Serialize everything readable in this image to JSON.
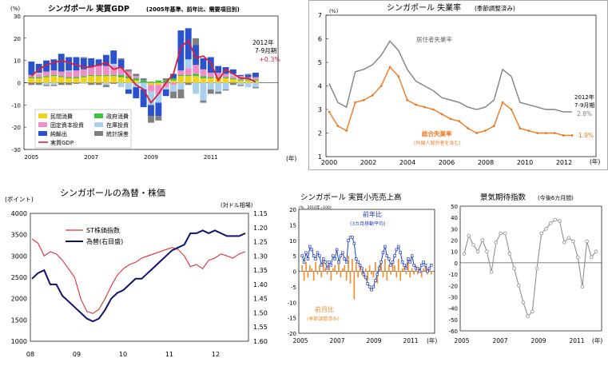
{
  "chart_data": [
    {
      "type": "bar",
      "title": "シンガポール 実質GDP",
      "subtitle": "(2005年基準、前年比、需要項目別)",
      "ylabel": "(%)",
      "xlabel": "(年)",
      "ylim": [
        -30,
        30
      ],
      "yticks": [
        "30",
        "20",
        "10",
        "0",
        "-10",
        "-20",
        "-30"
      ],
      "xticks": [
        "2005",
        "2007",
        "2009",
        "2011"
      ],
      "annotation": [
        "2012年",
        "7-9月期",
        "+0.3%"
      ],
      "legend": [
        "民間消費",
        "政府消費",
        "固定資本投資",
        "在庫投資",
        "純輸出",
        "統計誤差",
        "実質GDP"
      ],
      "colors": {
        "private_consumption": "#f2d21c",
        "government": "#3cc23c",
        "fixed_investment": "#f08cc8",
        "inventory": "#a8d0f0",
        "net_exports": "#2a52cc",
        "discrepancy": "#808080",
        "gdp": "#d8203c"
      },
      "quarters": [
        "2005Q1",
        "2005Q2",
        "2005Q3",
        "2005Q4",
        "2006Q1",
        "2006Q2",
        "2006Q3",
        "2006Q4",
        "2007Q1",
        "2007Q2",
        "2007Q3",
        "2007Q4",
        "2008Q1",
        "2008Q2",
        "2008Q3",
        "2008Q4",
        "2009Q1",
        "2009Q2",
        "2009Q3",
        "2009Q4",
        "2010Q1",
        "2010Q2",
        "2010Q3",
        "2010Q4",
        "2011Q1",
        "2011Q2",
        "2011Q3",
        "2011Q4",
        "2012Q1",
        "2012Q2",
        "2012Q3"
      ],
      "series": [
        {
          "key": "private_consumption",
          "name": "民間消費",
          "values": [
            2,
            2,
            2.5,
            3,
            2.5,
            2,
            2,
            2.5,
            3,
            3,
            3,
            3,
            2.5,
            2,
            1,
            0,
            -1,
            -1,
            0,
            1,
            3,
            3,
            3,
            2,
            2,
            2,
            2,
            1.5,
            1,
            1,
            1
          ]
        },
        {
          "key": "government",
          "name": "政府消費",
          "values": [
            0.5,
            0.5,
            0.5,
            0.5,
            0.5,
            0.5,
            0.5,
            0.5,
            0.5,
            0.5,
            0.5,
            0.5,
            1,
            1,
            1,
            1,
            0.5,
            1,
            1,
            1,
            0.5,
            0.5,
            1,
            1,
            0.5,
            0.5,
            0.5,
            0.5,
            0.5,
            0.5,
            0.5
          ]
        },
        {
          "key": "fixed_investment",
          "name": "固定資本投資",
          "values": [
            1,
            1.5,
            2,
            2,
            2,
            2.5,
            3,
            3,
            3.5,
            4,
            4,
            4,
            3,
            2,
            1,
            0,
            -3,
            -4,
            -2,
            -1,
            2,
            3,
            4,
            3,
            2,
            2,
            1.5,
            1,
            1.5,
            1,
            1
          ]
        },
        {
          "key": "inventory",
          "name": "在庫投資",
          "values": [
            0,
            0.5,
            -1,
            -1,
            0,
            0.5,
            0,
            -0.5,
            0,
            0,
            -1,
            1,
            -2,
            -3,
            -2,
            -3,
            -6,
            -4,
            -1,
            -3,
            -3,
            4,
            -5,
            -8,
            -3,
            -4,
            -3,
            1,
            -1,
            -2,
            -2
          ]
        },
        {
          "key": "net_exports",
          "name": "純輸出",
          "values": [
            6,
            4,
            5,
            5,
            8,
            6,
            6,
            5,
            4,
            3,
            5,
            6,
            4,
            -2,
            -5,
            -8,
            -5,
            -6,
            -3,
            2,
            18,
            14,
            9,
            5,
            7,
            3,
            3,
            2,
            0.5,
            1,
            2
          ]
        },
        {
          "key": "discrepancy",
          "name": "統計誤差",
          "values": [
            -1,
            -1,
            -0.5,
            -0.5,
            -1,
            -1,
            -0.5,
            0.5,
            -1,
            -1,
            -1,
            -0.5,
            0.5,
            1,
            1,
            1,
            -3,
            -2,
            1,
            -3,
            -4,
            -1,
            3,
            -1,
            -2,
            -1,
            -0.5,
            -1,
            -0.5,
            0.5,
            -0.5
          ]
        },
        {
          "key": "gdp",
          "name": "実質GDP",
          "values": [
            3,
            6,
            8,
            9,
            10,
            9,
            8,
            7,
            7,
            8,
            9,
            6,
            7,
            3,
            -1,
            -3,
            -9,
            -5,
            0,
            4,
            16,
            19,
            11,
            12,
            9,
            1,
            6,
            4,
            2,
            2,
            0.3
          ]
        }
      ]
    },
    {
      "type": "line",
      "title": "シンガポール 失業率",
      "subtitle": "(季節調整済み)",
      "ylabel": "(%)",
      "xlabel": "(年)",
      "ylim": [
        1,
        7
      ],
      "yticks": [
        "7",
        "6",
        "5",
        "4",
        "3",
        "2",
        "1"
      ],
      "xticks": [
        "2000",
        "2002",
        "2004",
        "2006",
        "2008",
        "2010",
        "2012"
      ],
      "annotation": [
        "2012年",
        "7-9月期",
        "2.8%",
        "1.9%"
      ],
      "colors": {
        "resident": "#808080",
        "overall": "#f07820"
      },
      "series": [
        {
          "key": "resident",
          "name": "居住者失業率",
          "values": [
            4.1,
            3.3,
            3.1,
            4.6,
            4.7,
            4.9,
            5.3,
            5.9,
            5.5,
            4.7,
            4.2,
            4.0,
            3.8,
            3.5,
            3.4,
            3.3,
            3.1,
            3.0,
            3.1,
            3.4,
            4.7,
            4.4,
            3.3,
            3.2,
            3.1,
            3.0,
            3.0,
            2.9,
            2.9
          ]
        },
        {
          "key": "overall",
          "name": "総合失業率",
          "note": "(外国人就労者を含む)",
          "values": [
            2.9,
            2.3,
            2.1,
            3.3,
            3.4,
            3.6,
            4.0,
            4.8,
            4.4,
            3.4,
            3.2,
            3.1,
            3.0,
            2.8,
            2.6,
            2.5,
            2.2,
            2.0,
            2.1,
            2.3,
            3.3,
            3.0,
            2.2,
            2.1,
            2.0,
            2.0,
            2.0,
            1.9,
            1.9
          ]
        }
      ]
    },
    {
      "type": "line",
      "title": "シンガポールの為替・株価",
      "ylabel": "(ポイント)",
      "ylabel2": "(対ドル相場)",
      "xticks": [
        "08",
        "09",
        "10",
        "11",
        "12"
      ],
      "ylim": [
        1000,
        4000
      ],
      "y2lim": [
        1.6,
        1.15
      ],
      "yticks": [
        "4000",
        "3500",
        "3000",
        "2500",
        "2000",
        "1500",
        "1000"
      ],
      "y2ticks": [
        "1.15",
        "1.20",
        "1.25",
        "1.30",
        "1.35",
        "1.40",
        "1.45",
        "1.50",
        "1.55",
        "1.60"
      ],
      "colors": {
        "sti": "#e03030",
        "fx": "#101070"
      },
      "series": [
        {
          "key": "sti",
          "name": "ST株価指数",
          "values": [
            3400,
            3300,
            3000,
            3100,
            3050,
            2900,
            2700,
            2500,
            2000,
            1700,
            1650,
            1750,
            2000,
            2300,
            2550,
            2700,
            2800,
            2850,
            2950,
            3000,
            3050,
            3100,
            3150,
            3200,
            3150,
            3000,
            2750,
            2800,
            2700,
            2900,
            2950,
            3050,
            3000,
            2950,
            3050,
            3100
          ]
        },
        {
          "key": "fx",
          "name": "為替(右目盛)",
          "values": [
            1.38,
            1.36,
            1.35,
            1.4,
            1.4,
            1.44,
            1.46,
            1.48,
            1.5,
            1.52,
            1.53,
            1.52,
            1.49,
            1.45,
            1.43,
            1.42,
            1.4,
            1.38,
            1.38,
            1.36,
            1.34,
            1.32,
            1.3,
            1.28,
            1.27,
            1.26,
            1.22,
            1.22,
            1.21,
            1.22,
            1.21,
            1.22,
            1.23,
            1.23,
            1.23,
            1.22
          ]
        }
      ]
    },
    {
      "type": "bar",
      "title": "シンガポール 実質小売売上高",
      "ylabel": "(%、2010年=100)",
      "xlabel": "(年)",
      "ylim": [
        -20,
        20
      ],
      "yticks": [
        "20",
        "15",
        "10",
        "5",
        "0",
        "-5",
        "-10",
        "-15",
        "-20"
      ],
      "xticks": [
        "2005",
        "2007",
        "2009",
        "2011"
      ],
      "colors": {
        "yoy": "#2040c0",
        "mom": "#f09030"
      },
      "series": [
        {
          "key": "yoy",
          "name": "前年比",
          "note": "(3カ月移動平均)",
          "values": [
            5,
            3,
            6,
            4,
            8,
            7,
            5,
            4,
            6,
            5,
            2,
            4,
            3,
            1,
            3,
            2,
            5,
            4,
            7,
            3,
            5,
            6,
            4,
            3,
            10,
            11,
            11,
            9,
            4,
            3,
            2,
            1,
            -1,
            -2,
            -4,
            -5,
            -6,
            -5,
            -3,
            -1,
            1,
            3,
            6,
            8,
            5,
            4,
            2,
            3,
            5,
            7,
            8,
            6,
            3,
            2,
            1,
            4,
            3,
            5,
            2,
            1,
            1,
            0,
            2,
            3,
            2,
            0,
            1,
            2
          ]
        },
        {
          "key": "mom",
          "name": "前月比",
          "note": "(季節調整済み)",
          "values": [
            2,
            -3,
            3,
            -2,
            2,
            1,
            -3,
            3,
            -1,
            2,
            -2,
            3,
            1,
            -1,
            2,
            -3,
            1,
            2,
            -1,
            3,
            -2,
            1,
            2,
            -3,
            5,
            -4,
            4,
            -9,
            3,
            -2,
            2,
            -1,
            -2,
            1,
            -3,
            2,
            -1,
            -2,
            3,
            -4,
            2,
            3,
            -2,
            4,
            -3,
            2,
            -1,
            3,
            2,
            -2,
            4,
            -3,
            1,
            2,
            -1,
            3,
            -2,
            1,
            -1,
            2,
            -1,
            1,
            -2,
            1,
            2,
            -1,
            1,
            -1
          ]
        }
      ]
    },
    {
      "type": "line",
      "title": "景気期待指数",
      "subtitle": "(今後6カ月間)",
      "xlabel": "(年)",
      "ylim": [
        -60,
        50
      ],
      "yticks": [
        "50",
        "40",
        "30",
        "20",
        "10",
        "0",
        "-10",
        "-20",
        "-30",
        "-40",
        "-50",
        "-60"
      ],
      "xticks": [
        "2005",
        "2007",
        "2009",
        "2011"
      ],
      "colors": {
        "line": "#909090"
      },
      "series": [
        {
          "key": "expectation",
          "name": "景気期待指数",
          "values": [
            8,
            24,
            16,
            10,
            20,
            10,
            -8,
            18,
            26,
            26,
            8,
            -5,
            -20,
            -35,
            -47,
            -43,
            -5,
            26,
            30,
            35,
            38,
            37,
            18,
            22,
            19,
            5,
            -21,
            19,
            5,
            10
          ]
        }
      ]
    }
  ]
}
